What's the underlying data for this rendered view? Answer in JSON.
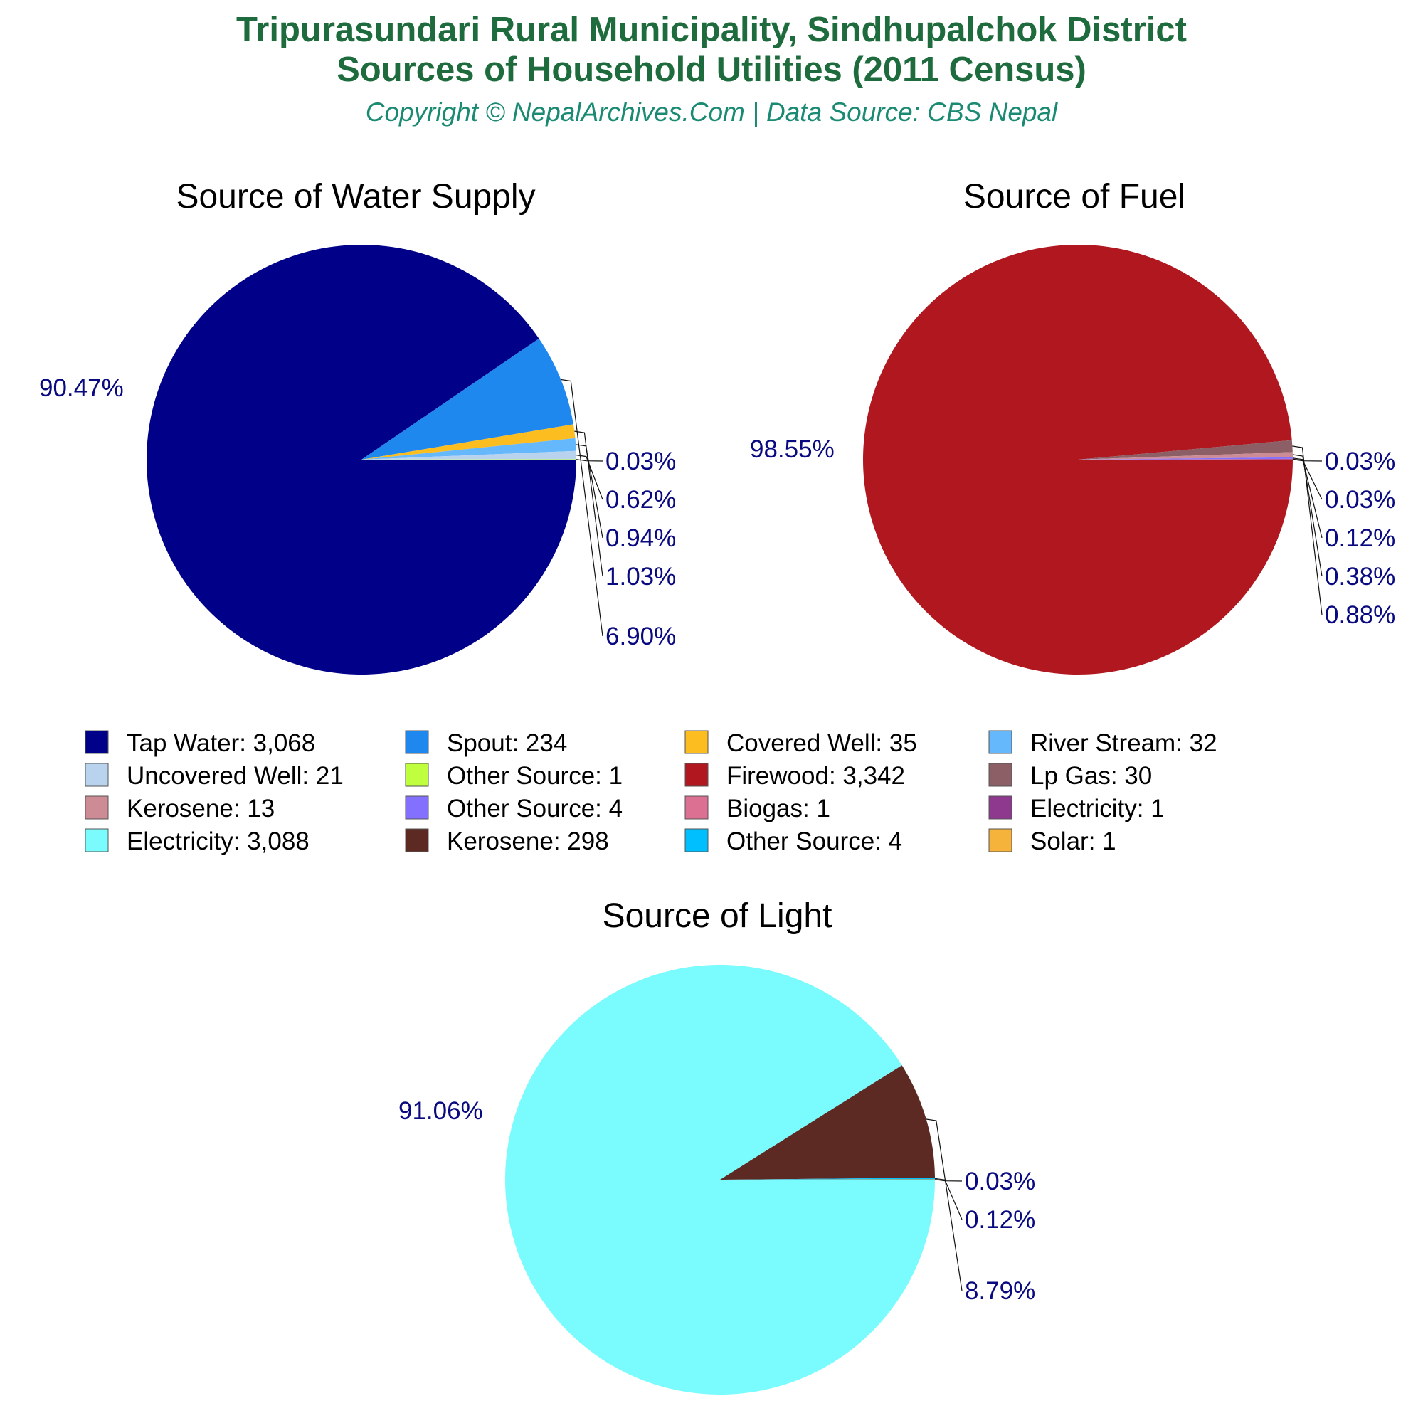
{
  "header": {
    "title_line1": "Tripurasundari Rural Municipality, Sindhupalchok District",
    "title_line2": "Sources of Household Utilities (2011 Census)",
    "copyright": "Copyright © NepalArchives.Com | Data Source: CBS Nepal"
  },
  "chart_data": [
    {
      "type": "pie",
      "title": "Source of Water Supply",
      "slices": [
        {
          "name": "Tap Water",
          "value": 3068,
          "percent_label": "90.47%",
          "color": "#000088"
        },
        {
          "name": "Spout",
          "value": 234,
          "percent_label": "6.90%",
          "color": "#1e88ee"
        },
        {
          "name": "Covered Well",
          "value": 35,
          "percent_label": "1.03%",
          "color": "#fbbd20"
        },
        {
          "name": "River Stream",
          "value": 32,
          "percent_label": "0.94%",
          "color": "#66b8fc"
        },
        {
          "name": "Uncovered Well",
          "value": 21,
          "percent_label": "0.62%",
          "color": "#b9d3ee"
        },
        {
          "name": "Other Source",
          "value": 1,
          "percent_label": "0.03%",
          "color": "#c0ff3e"
        }
      ]
    },
    {
      "type": "pie",
      "title": "Source of Fuel",
      "slices": [
        {
          "name": "Firewood",
          "value": 3342,
          "percent_label": "98.55%",
          "color": "#b0171f"
        },
        {
          "name": "Lp Gas",
          "value": 30,
          "percent_label": "0.88%",
          "color": "#8b5f65"
        },
        {
          "name": "Kerosene",
          "value": 13,
          "percent_label": "0.38%",
          "color": "#cd8c95"
        },
        {
          "name": "Other Source",
          "value": 4,
          "percent_label": "0.12%",
          "color": "#8470ff"
        },
        {
          "name": "Biogas",
          "value": 1,
          "percent_label": "0.03%",
          "color": "#db7093"
        },
        {
          "name": "Electricity",
          "value": 1,
          "percent_label": "0.03%",
          "color": "#8e388e"
        }
      ]
    },
    {
      "type": "pie",
      "title": "Source of Light",
      "slices": [
        {
          "name": "Electricity",
          "value": 3088,
          "percent_label": "91.06%",
          "color": "#7afbfd"
        },
        {
          "name": "Kerosene",
          "value": 298,
          "percent_label": "8.79%",
          "color": "#5c2a22"
        },
        {
          "name": "Other Source",
          "value": 4,
          "percent_label": "0.12%",
          "color": "#00bfff"
        },
        {
          "name": "Solar",
          "value": 1,
          "percent_label": "0.03%",
          "color": "#f6b33b"
        }
      ]
    }
  ],
  "legend": [
    {
      "label": "Tap Water: 3,068",
      "color": "#000088"
    },
    {
      "label": "Spout: 234",
      "color": "#1e88ee"
    },
    {
      "label": "Covered Well: 35",
      "color": "#fbbd20"
    },
    {
      "label": "River Stream: 32",
      "color": "#66b8fc"
    },
    {
      "label": "Uncovered Well: 21",
      "color": "#b9d3ee"
    },
    {
      "label": "Other Source: 1",
      "color": "#c0ff3e"
    },
    {
      "label": "Firewood: 3,342",
      "color": "#b0171f"
    },
    {
      "label": "Lp Gas: 30",
      "color": "#8b5f65"
    },
    {
      "label": "Kerosene: 13",
      "color": "#cd8c95"
    },
    {
      "label": "Other Source: 4",
      "color": "#8470ff"
    },
    {
      "label": "Biogas: 1",
      "color": "#db7093"
    },
    {
      "label": "Electricity: 1",
      "color": "#8e388e"
    },
    {
      "label": "Electricity: 3,088",
      "color": "#7afbfd"
    },
    {
      "label": "Kerosene: 298",
      "color": "#5c2a22"
    },
    {
      "label": "Other Source: 4",
      "color": "#00bfff"
    },
    {
      "label": "Solar: 1",
      "color": "#f6b33b"
    }
  ]
}
